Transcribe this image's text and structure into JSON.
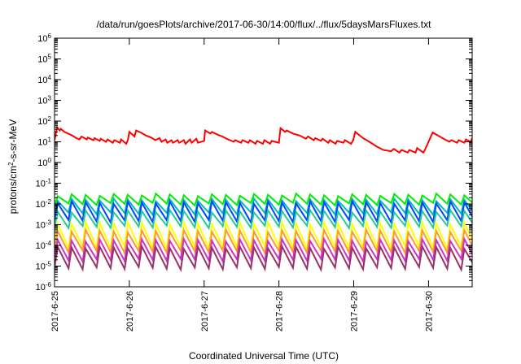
{
  "chart_data": {
    "type": "line",
    "title": "/data/run/goesPlots/archive/2017-06-30/14:00/flux/../flux/5daysMarsFluxes.txt",
    "xlabel": "Coordinated Universal Time (UTC)",
    "ylabel_prefix": "protons/cm",
    "ylabel_sup": "2",
    "ylabel_suffix": "-s-sr-MeV",
    "y_scale": "log",
    "ylim": [
      1e-06,
      1000000.0
    ],
    "y_ticks": [
      {
        "exp": "-6",
        "value": 1e-06
      },
      {
        "exp": "-5",
        "value": 1e-05
      },
      {
        "exp": "-4",
        "value": 0.0001
      },
      {
        "exp": "-3",
        "value": 0.001
      },
      {
        "exp": "-2",
        "value": 0.01
      },
      {
        "exp": "-1",
        "value": 0.1
      },
      {
        "exp": "0",
        "value": 1
      },
      {
        "exp": "1",
        "value": 10.0
      },
      {
        "exp": "2",
        "value": 100.0
      },
      {
        "exp": "3",
        "value": 1000.0
      },
      {
        "exp": "4",
        "value": 10000.0
      },
      {
        "exp": "5",
        "value": 100000.0
      },
      {
        "exp": "6",
        "value": 1000000.0
      }
    ],
    "y_tick_base": "10",
    "xlim": [
      "2017-06-25 00:00",
      "2017-06-30 14:00"
    ],
    "x_ticks": [
      "2017-6-25",
      "2017-6-26",
      "2017-6-27",
      "2017-6-28",
      "2017-6-29",
      "2017-6-30"
    ],
    "grid": false,
    "legend": "none",
    "series": [
      {
        "color": "#ff0000",
        "x": [
          "2017-06-25 00:00",
          "2017-06-25 00:50",
          "2017-06-25 01:40",
          "2017-06-25 02:00",
          "2017-06-25 03:10",
          "2017-06-25 04:20",
          "2017-06-25 05:40",
          "2017-06-25 07:00",
          "2017-06-25 08:00",
          "2017-06-25 08:40",
          "2017-06-25 10:20",
          "2017-06-25 10:40",
          "2017-06-25 12:30",
          "2017-06-25 12:50",
          "2017-06-25 14:30",
          "2017-06-25 14:50",
          "2017-06-25 16:30",
          "2017-06-25 17:00",
          "2017-06-25 18:40",
          "2017-06-25 19:10",
          "2017-06-25 21:00",
          "2017-06-25 21:20",
          "2017-06-25 23:00",
          "2017-06-25 23:30",
          "2017-06-26 00:00",
          "2017-06-26 01:40",
          "2017-06-26 02:10",
          "2017-06-26 03:40",
          "2017-06-26 05:20",
          "2017-06-26 07:00",
          "2017-06-26 08:20",
          "2017-06-26 09:40",
          "2017-06-26 10:20",
          "2017-06-26 11:40",
          "2017-06-26 12:10",
          "2017-06-26 13:30",
          "2017-06-26 14:00",
          "2017-06-26 15:30",
          "2017-06-26 16:00",
          "2017-06-26 17:30",
          "2017-06-26 18:00",
          "2017-06-26 19:30",
          "2017-06-26 20:00",
          "2017-06-26 21:30",
          "2017-06-26 22:00",
          "2017-06-27 00:00",
          "2017-06-27 00:20",
          "2017-06-27 02:00",
          "2017-06-27 02:30",
          "2017-06-27 04:20",
          "2017-06-27 05:50",
          "2017-06-27 07:40",
          "2017-06-27 09:30",
          "2017-06-27 10:00",
          "2017-06-27 11:50",
          "2017-06-27 12:20",
          "2017-06-27 14:10",
          "2017-06-27 14:40",
          "2017-06-27 16:30",
          "2017-06-27 17:00",
          "2017-06-27 18:50",
          "2017-06-27 19:20",
          "2017-06-27 21:10",
          "2017-06-27 21:40",
          "2017-06-28 00:00",
          "2017-06-28 00:30",
          "2017-06-28 02:00",
          "2017-06-28 02:30",
          "2017-06-28 04:30",
          "2017-06-28 06:40",
          "2017-06-28 08:40",
          "2017-06-28 09:20",
          "2017-06-28 11:10",
          "2017-06-28 11:40",
          "2017-06-28 13:30",
          "2017-06-28 14:00",
          "2017-06-28 15:50",
          "2017-06-28 16:20",
          "2017-06-28 18:10",
          "2017-06-28 18:40",
          "2017-06-28 20:40",
          "2017-06-28 21:10",
          "2017-06-28 23:10",
          "2017-06-28 23:50",
          "2017-06-29 00:30",
          "2017-06-29 03:00",
          "2017-06-29 05:00",
          "2017-06-29 07:20",
          "2017-06-29 09:30",
          "2017-06-29 12:00",
          "2017-06-29 12:50",
          "2017-06-29 14:40",
          "2017-06-29 15:20",
          "2017-06-29 17:20",
          "2017-06-29 17:50",
          "2017-06-29 19:50",
          "2017-06-29 20:20",
          "2017-06-29 22:20",
          "2017-06-29 22:50",
          "2017-06-30 00:00",
          "2017-06-30 01:20",
          "2017-06-30 03:00",
          "2017-06-30 04:50",
          "2017-06-30 06:40",
          "2017-06-30 07:20",
          "2017-06-30 09:10",
          "2017-06-30 09:40",
          "2017-06-30 11:30",
          "2017-06-30 12:00",
          "2017-06-30 13:30",
          "2017-06-30 14:00"
        ],
        "y": [
          12,
          50,
          35,
          42,
          30,
          25,
          20,
          15,
          13,
          18,
          13,
          16,
          12,
          15,
          11,
          14,
          10,
          13,
          9,
          12,
          9,
          13,
          8,
          12,
          30,
          18,
          35,
          28,
          20,
          16,
          12,
          15,
          10,
          13,
          9,
          12,
          9,
          12,
          9,
          12,
          8,
          13,
          9,
          14,
          9,
          11,
          35,
          25,
          30,
          22,
          18,
          13,
          10,
          12,
          9,
          12,
          9,
          12,
          8,
          11,
          8,
          12,
          8,
          11,
          9,
          45,
          30,
          35,
          25,
          20,
          14,
          18,
          12,
          15,
          11,
          14,
          9,
          12,
          8,
          11,
          9,
          12,
          8,
          12,
          30,
          15,
          10,
          6,
          4,
          3.5,
          4.5,
          3,
          4,
          3,
          4,
          3,
          5,
          3,
          4,
          10,
          28,
          20,
          14,
          10,
          12,
          9,
          12,
          9,
          13,
          10,
          15
        ]
      }
    ],
    "band_series": [
      {
        "color": "#00ee00",
        "peak": 0.028,
        "trough": 0.01
      },
      {
        "color": "#00bbbb",
        "peak": 0.016,
        "trough": 0.0035
      },
      {
        "color": "#0044ff",
        "peak": 0.012,
        "trough": 0.0015
      },
      {
        "color": "#22cc99",
        "peak": 0.0045,
        "trough": 0.0008
      },
      {
        "color": "#ffff00",
        "peak": 0.0012,
        "trough": 8e-05
      },
      {
        "color": "#ff9933",
        "peak": 0.0005,
        "trough": 5e-05
      },
      {
        "color": "#cc33cc",
        "peak": 0.00018,
        "trough": 2e-05
      },
      {
        "color": "#993366",
        "peak": 8e-05,
        "trough": 8e-06
      }
    ],
    "band_cycle_hours": 4.5
  }
}
